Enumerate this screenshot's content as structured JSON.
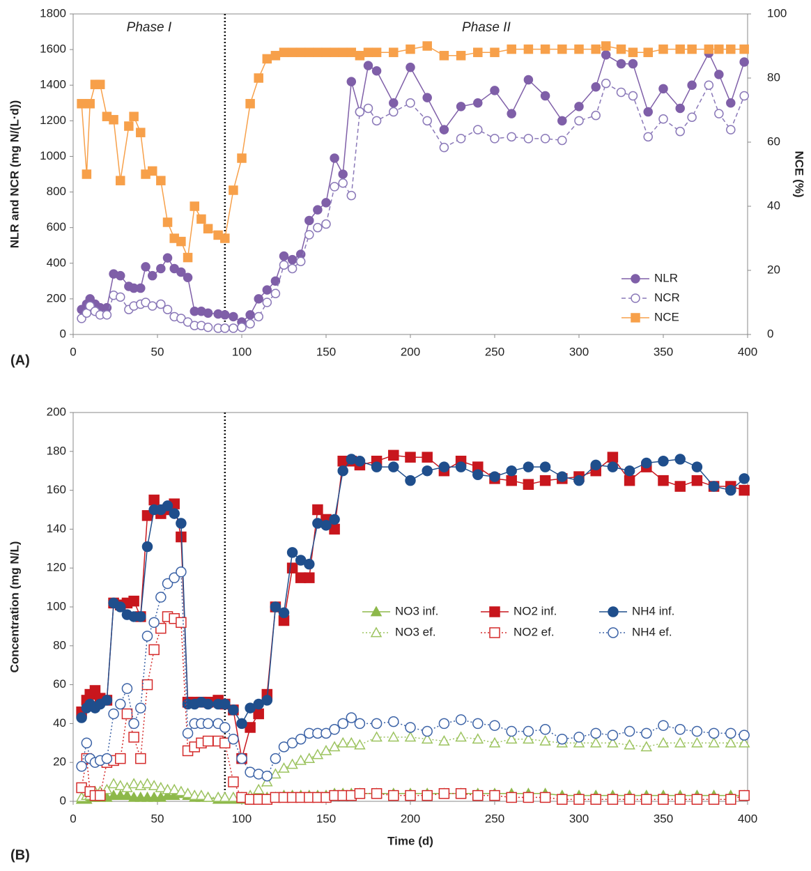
{
  "chart_data": [
    {
      "type": "line",
      "panel_label": "(A)",
      "phase_labels": [
        "Phase I",
        "Phase II"
      ],
      "phase_boundary": 90,
      "y_label": "NLR and NCR (mg N/(L·d))",
      "y2_label": "NCE (%)",
      "xlim": [
        0,
        400
      ],
      "xticks": [
        0,
        50,
        100,
        150,
        200,
        250,
        300,
        350,
        400
      ],
      "ylim": [
        0,
        1800
      ],
      "yticks": [
        0,
        200,
        400,
        600,
        800,
        1000,
        1200,
        1400,
        1600,
        1800
      ],
      "y2lim": [
        0,
        100
      ],
      "y2ticks": [
        0,
        20,
        40,
        60,
        80,
        100
      ],
      "legend": "lower right",
      "x": [
        5,
        8,
        10,
        13,
        16,
        20,
        24,
        28,
        33,
        36,
        40,
        43,
        47,
        52,
        56,
        60,
        64,
        68,
        72,
        76,
        80,
        86,
        90,
        95,
        100,
        105,
        110,
        115,
        120,
        125,
        130,
        135,
        140,
        145,
        150,
        155,
        160,
        165,
        170,
        175,
        180,
        190,
        200,
        210,
        220,
        230,
        240,
        250,
        260,
        270,
        280,
        290,
        300,
        310,
        316,
        325,
        332,
        341,
        350,
        360,
        367,
        377,
        383,
        390,
        398
      ],
      "series": [
        {
          "name": "NLR",
          "color": "#7f5fa8",
          "marker": "circle",
          "filled": true,
          "line_style": "solid",
          "values": [
            140,
            170,
            200,
            170,
            150,
            150,
            340,
            330,
            270,
            260,
            260,
            380,
            330,
            370,
            430,
            370,
            350,
            320,
            130,
            130,
            120,
            115,
            110,
            100,
            70,
            110,
            200,
            250,
            300,
            440,
            420,
            450,
            640,
            700,
            740,
            990,
            900,
            1420,
            1250,
            1510,
            1480,
            1300,
            1500,
            1330,
            1150,
            1280,
            1300,
            1370,
            1240,
            1430,
            1340,
            1200,
            1280,
            1390,
            1570,
            1520,
            1520,
            1250,
            1380,
            1270,
            1400,
            1580,
            1460,
            1300,
            1530
          ]
        },
        {
          "name": "NCR",
          "color": "#8a78b8",
          "marker": "circle",
          "filled": false,
          "line_style": "dashed",
          "values": [
            90,
            120,
            160,
            130,
            110,
            110,
            220,
            210,
            140,
            160,
            170,
            180,
            160,
            170,
            140,
            100,
            90,
            70,
            50,
            50,
            40,
            35,
            35,
            35,
            40,
            60,
            100,
            180,
            230,
            390,
            370,
            410,
            560,
            600,
            620,
            830,
            850,
            780,
            1250,
            1270,
            1200,
            1250,
            1300,
            1200,
            1050,
            1100,
            1150,
            1100,
            1110,
            1100,
            1100,
            1090,
            1200,
            1230,
            1410,
            1360,
            1340,
            1110,
            1210,
            1140,
            1220,
            1400,
            1240,
            1150,
            1340
          ]
        },
        {
          "name": "NCE",
          "color": "#f7a04a",
          "marker": "square",
          "filled": true,
          "line_style": "solid",
          "axis": "y2",
          "values": [
            72,
            50,
            72,
            78,
            78,
            68,
            67,
            48,
            65,
            68,
            63,
            50,
            51,
            48,
            35,
            30,
            29,
            24,
            40,
            36,
            33,
            31,
            30,
            45,
            55,
            72,
            80,
            86,
            87,
            88,
            88,
            88,
            88,
            88,
            88,
            88,
            88,
            88,
            87,
            88,
            88,
            88,
            89,
            90,
            87,
            87,
            88,
            88,
            89,
            89,
            89,
            89,
            89,
            89,
            90,
            89,
            88,
            88,
            89,
            89,
            89,
            89,
            89,
            89,
            89
          ]
        }
      ]
    },
    {
      "type": "line",
      "panel_label": "(B)",
      "phase_boundary": 90,
      "x_label": "Time (d)",
      "y_label": "Concentration (mg N/L)",
      "xlim": [
        0,
        400
      ],
      "xticks": [
        0,
        50,
        100,
        150,
        200,
        250,
        300,
        350,
        400
      ],
      "ylim": [
        0,
        200
      ],
      "yticks": [
        0,
        20,
        40,
        60,
        80,
        100,
        120,
        140,
        160,
        180,
        200
      ],
      "legend": "center right",
      "x": [
        5,
        8,
        10,
        13,
        16,
        20,
        24,
        28,
        32,
        36,
        40,
        44,
        48,
        52,
        56,
        60,
        64,
        68,
        72,
        76,
        80,
        86,
        90,
        95,
        100,
        105,
        110,
        115,
        120,
        125,
        130,
        135,
        140,
        145,
        150,
        155,
        160,
        165,
        170,
        180,
        190,
        200,
        210,
        220,
        230,
        240,
        250,
        260,
        270,
        280,
        290,
        300,
        310,
        320,
        330,
        340,
        350,
        360,
        370,
        380,
        390,
        398
      ],
      "series": [
        {
          "name": "NO3 inf.",
          "color": "#8db84a",
          "marker": "triangle",
          "filled": true,
          "line_style": "solid",
          "values": [
            1,
            1,
            2,
            2,
            2,
            2,
            3,
            3,
            3,
            2,
            2,
            2,
            2,
            2,
            3,
            3,
            4,
            3,
            2,
            2,
            2,
            1,
            1,
            1,
            1,
            1,
            2,
            2,
            2,
            3,
            3,
            3,
            3,
            3,
            3,
            4,
            4,
            4,
            4,
            4,
            4,
            4,
            4,
            4,
            4,
            4,
            4,
            4,
            4,
            4,
            3,
            3,
            3,
            3,
            3,
            3,
            3,
            3,
            3,
            3,
            3,
            3
          ]
        },
        {
          "name": "NO2 inf.",
          "color": "#c8161d",
          "marker": "square",
          "filled": true,
          "line_style": "solid",
          "values": [
            46,
            52,
            55,
            57,
            53,
            52,
            102,
            101,
            102,
            103,
            95,
            147,
            155,
            148,
            150,
            153,
            136,
            51,
            51,
            51,
            51,
            52,
            50,
            47,
            22,
            38,
            45,
            55,
            100,
            93,
            120,
            115,
            115,
            150,
            145,
            140,
            175,
            175,
            173,
            175,
            178,
            177,
            177,
            170,
            175,
            172,
            166,
            165,
            163,
            165,
            166,
            167,
            170,
            177,
            165,
            172,
            165,
            162,
            165,
            162,
            162,
            160
          ]
        },
        {
          "name": "NH4 inf.",
          "color": "#1f4e8c",
          "marker": "circle",
          "filled": true,
          "line_style": "solid",
          "values": [
            43,
            48,
            50,
            48,
            50,
            52,
            102,
            100,
            96,
            95,
            95,
            131,
            150,
            150,
            152,
            148,
            143,
            50,
            50,
            51,
            50,
            50,
            50,
            47,
            40,
            48,
            50,
            52,
            100,
            97,
            128,
            124,
            122,
            143,
            142,
            145,
            170,
            176,
            175,
            172,
            172,
            165,
            170,
            172,
            172,
            168,
            167,
            170,
            172,
            172,
            167,
            165,
            173,
            172,
            170,
            174,
            175,
            176,
            172,
            162,
            160,
            166
          ]
        },
        {
          "name": "NO3 ef.",
          "color": "#9cc35f",
          "marker": "triangle",
          "filled": false,
          "line_style": "dotted",
          "values": [
            2,
            3,
            3,
            5,
            5,
            6,
            9,
            8,
            7,
            9,
            8,
            9,
            8,
            7,
            6,
            6,
            5,
            4,
            3,
            3,
            2,
            2,
            2,
            2,
            2,
            3,
            6,
            10,
            14,
            17,
            19,
            21,
            22,
            24,
            26,
            28,
            30,
            30,
            29,
            33,
            33,
            33,
            32,
            31,
            33,
            32,
            30,
            32,
            32,
            31,
            30,
            30,
            30,
            30,
            29,
            28,
            30,
            30,
            30,
            30,
            30,
            30
          ]
        },
        {
          "name": "NO2 ef.",
          "color": "#d42a2a",
          "marker": "square",
          "filled": false,
          "line_style": "dotted",
          "values": [
            7,
            22,
            5,
            3,
            3,
            20,
            21,
            22,
            45,
            33,
            22,
            60,
            78,
            89,
            95,
            94,
            92,
            26,
            28,
            30,
            31,
            31,
            30,
            10,
            2,
            1,
            1,
            1,
            2,
            2,
            2,
            2,
            2,
            2,
            2,
            3,
            3,
            3,
            4,
            4,
            3,
            3,
            3,
            4,
            4,
            3,
            3,
            2,
            2,
            2,
            1,
            1,
            1,
            1,
            1,
            1,
            1,
            1,
            1,
            1,
            1,
            3
          ]
        },
        {
          "name": "NH4 ef.",
          "color": "#3b62a6",
          "marker": "circle",
          "filled": false,
          "line_style": "dotted",
          "values": [
            18,
            30,
            22,
            20,
            21,
            22,
            45,
            50,
            58,
            40,
            48,
            85,
            92,
            105,
            112,
            115,
            118,
            35,
            40,
            40,
            40,
            40,
            38,
            32,
            22,
            15,
            14,
            13,
            22,
            28,
            30,
            32,
            35,
            35,
            35,
            37,
            40,
            43,
            40,
            40,
            41,
            38,
            36,
            40,
            42,
            40,
            39,
            36,
            36,
            37,
            32,
            33,
            35,
            34,
            36,
            35,
            39,
            37,
            36,
            35,
            35,
            34
          ]
        }
      ]
    }
  ]
}
